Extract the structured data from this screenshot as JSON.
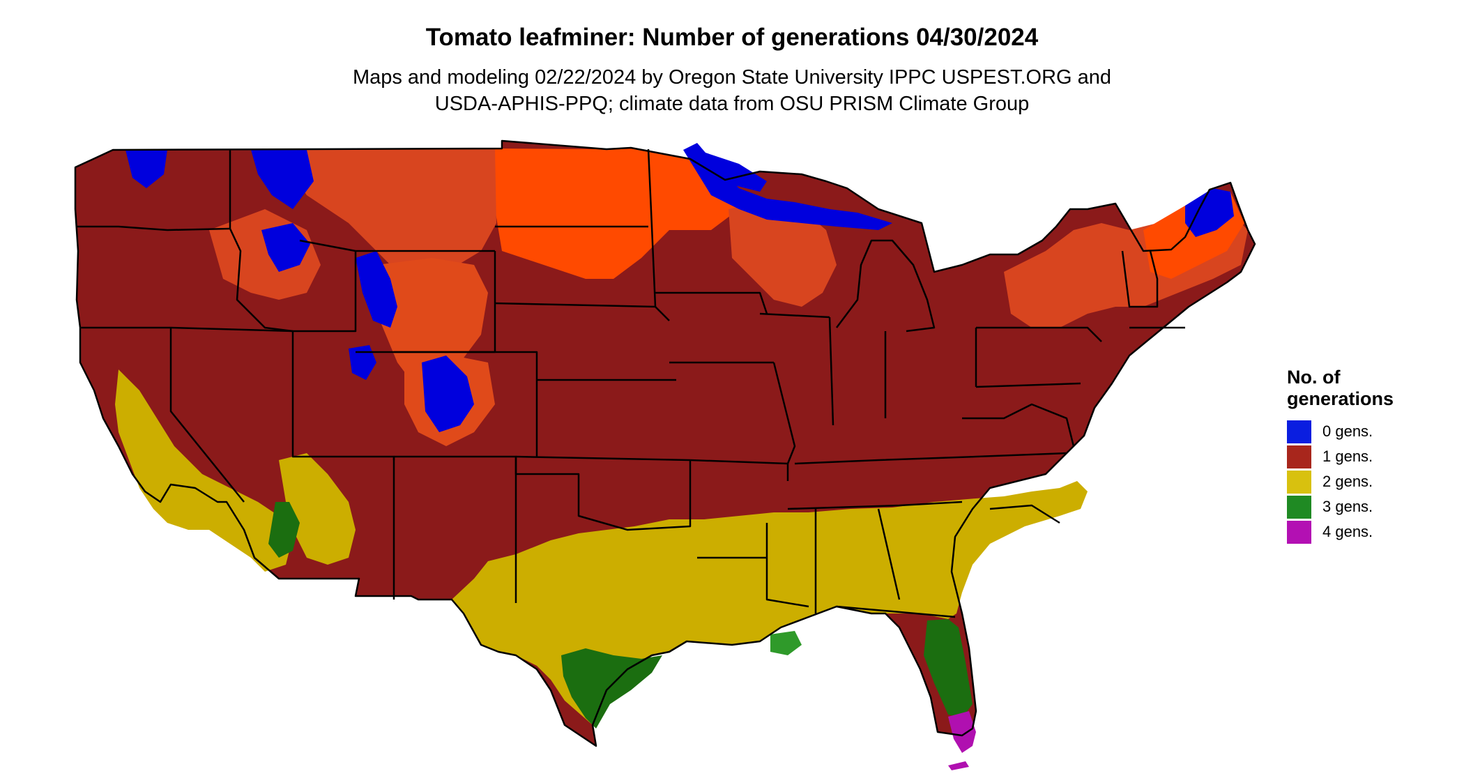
{
  "title": "Tomato leafminer: Number of generations 04/30/2024",
  "subtitle_line1": "Maps and modeling 02/22/2024 by Oregon State University IPPC USPEST.ORG and",
  "subtitle_line2": "USDA-APHIS-PPQ; climate data from OSU PRISM Climate Group",
  "legend": {
    "title": "No. of generations",
    "items": [
      {
        "label": "0 gens.",
        "color": "#0a1ee0"
      },
      {
        "label": "1 gens.",
        "color": "#a8261c"
      },
      {
        "label": "2 gens.",
        "color": "#d8c10f"
      },
      {
        "label": "3 gens.",
        "color": "#1f8a23"
      },
      {
        "label": "4 gens.",
        "color": "#b310b3"
      }
    ]
  },
  "colors": {
    "one_gen_dark": "#8b1a1a",
    "one_gen_orange": "#ff4a00",
    "one_gen_mid": "#d8451f",
    "two_gen": "#ccae00",
    "three_gen": "#1b6e10",
    "zero_gen": "#0000dd",
    "four_gen": "#b010b0",
    "boundary": "#000000"
  }
}
